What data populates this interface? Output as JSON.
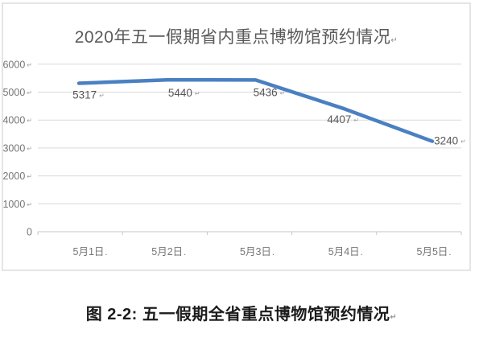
{
  "chart": {
    "title": "2020年五一假期省内重点博物馆预约情况",
    "title_mark": "↵"
  },
  "chart_data": {
    "type": "line",
    "title": "2020年五一假期省内重点博物馆预约情况",
    "categories": [
      "5月1日",
      "5月2日",
      "5月3日",
      "5月4日",
      "5月5日"
    ],
    "values": [
      5317,
      5440,
      5436,
      4407,
      3240
    ],
    "xlabel": "",
    "ylabel": "",
    "ylim": [
      0,
      6000
    ],
    "ytick_interval": 1000,
    "yticks": [
      0,
      1000,
      2000,
      3000,
      4000,
      5000,
      6000
    ],
    "grid": true,
    "legend": false,
    "data_labels": true,
    "colors": {
      "line": "#4a80c2",
      "gridline": "#d9d9d9",
      "axis_line": "#c6c6c6",
      "tick_label": "#757575",
      "data_label": "#565656",
      "formatting_mark": "#9e9e9e"
    },
    "marks": {
      "value_suffix": "↵",
      "ytick_suffix": "↵",
      "category_suffix": "."
    }
  },
  "caption": {
    "text": "图 2-2: 五一假期全省重点博物馆预约情况",
    "mark": "↵"
  }
}
